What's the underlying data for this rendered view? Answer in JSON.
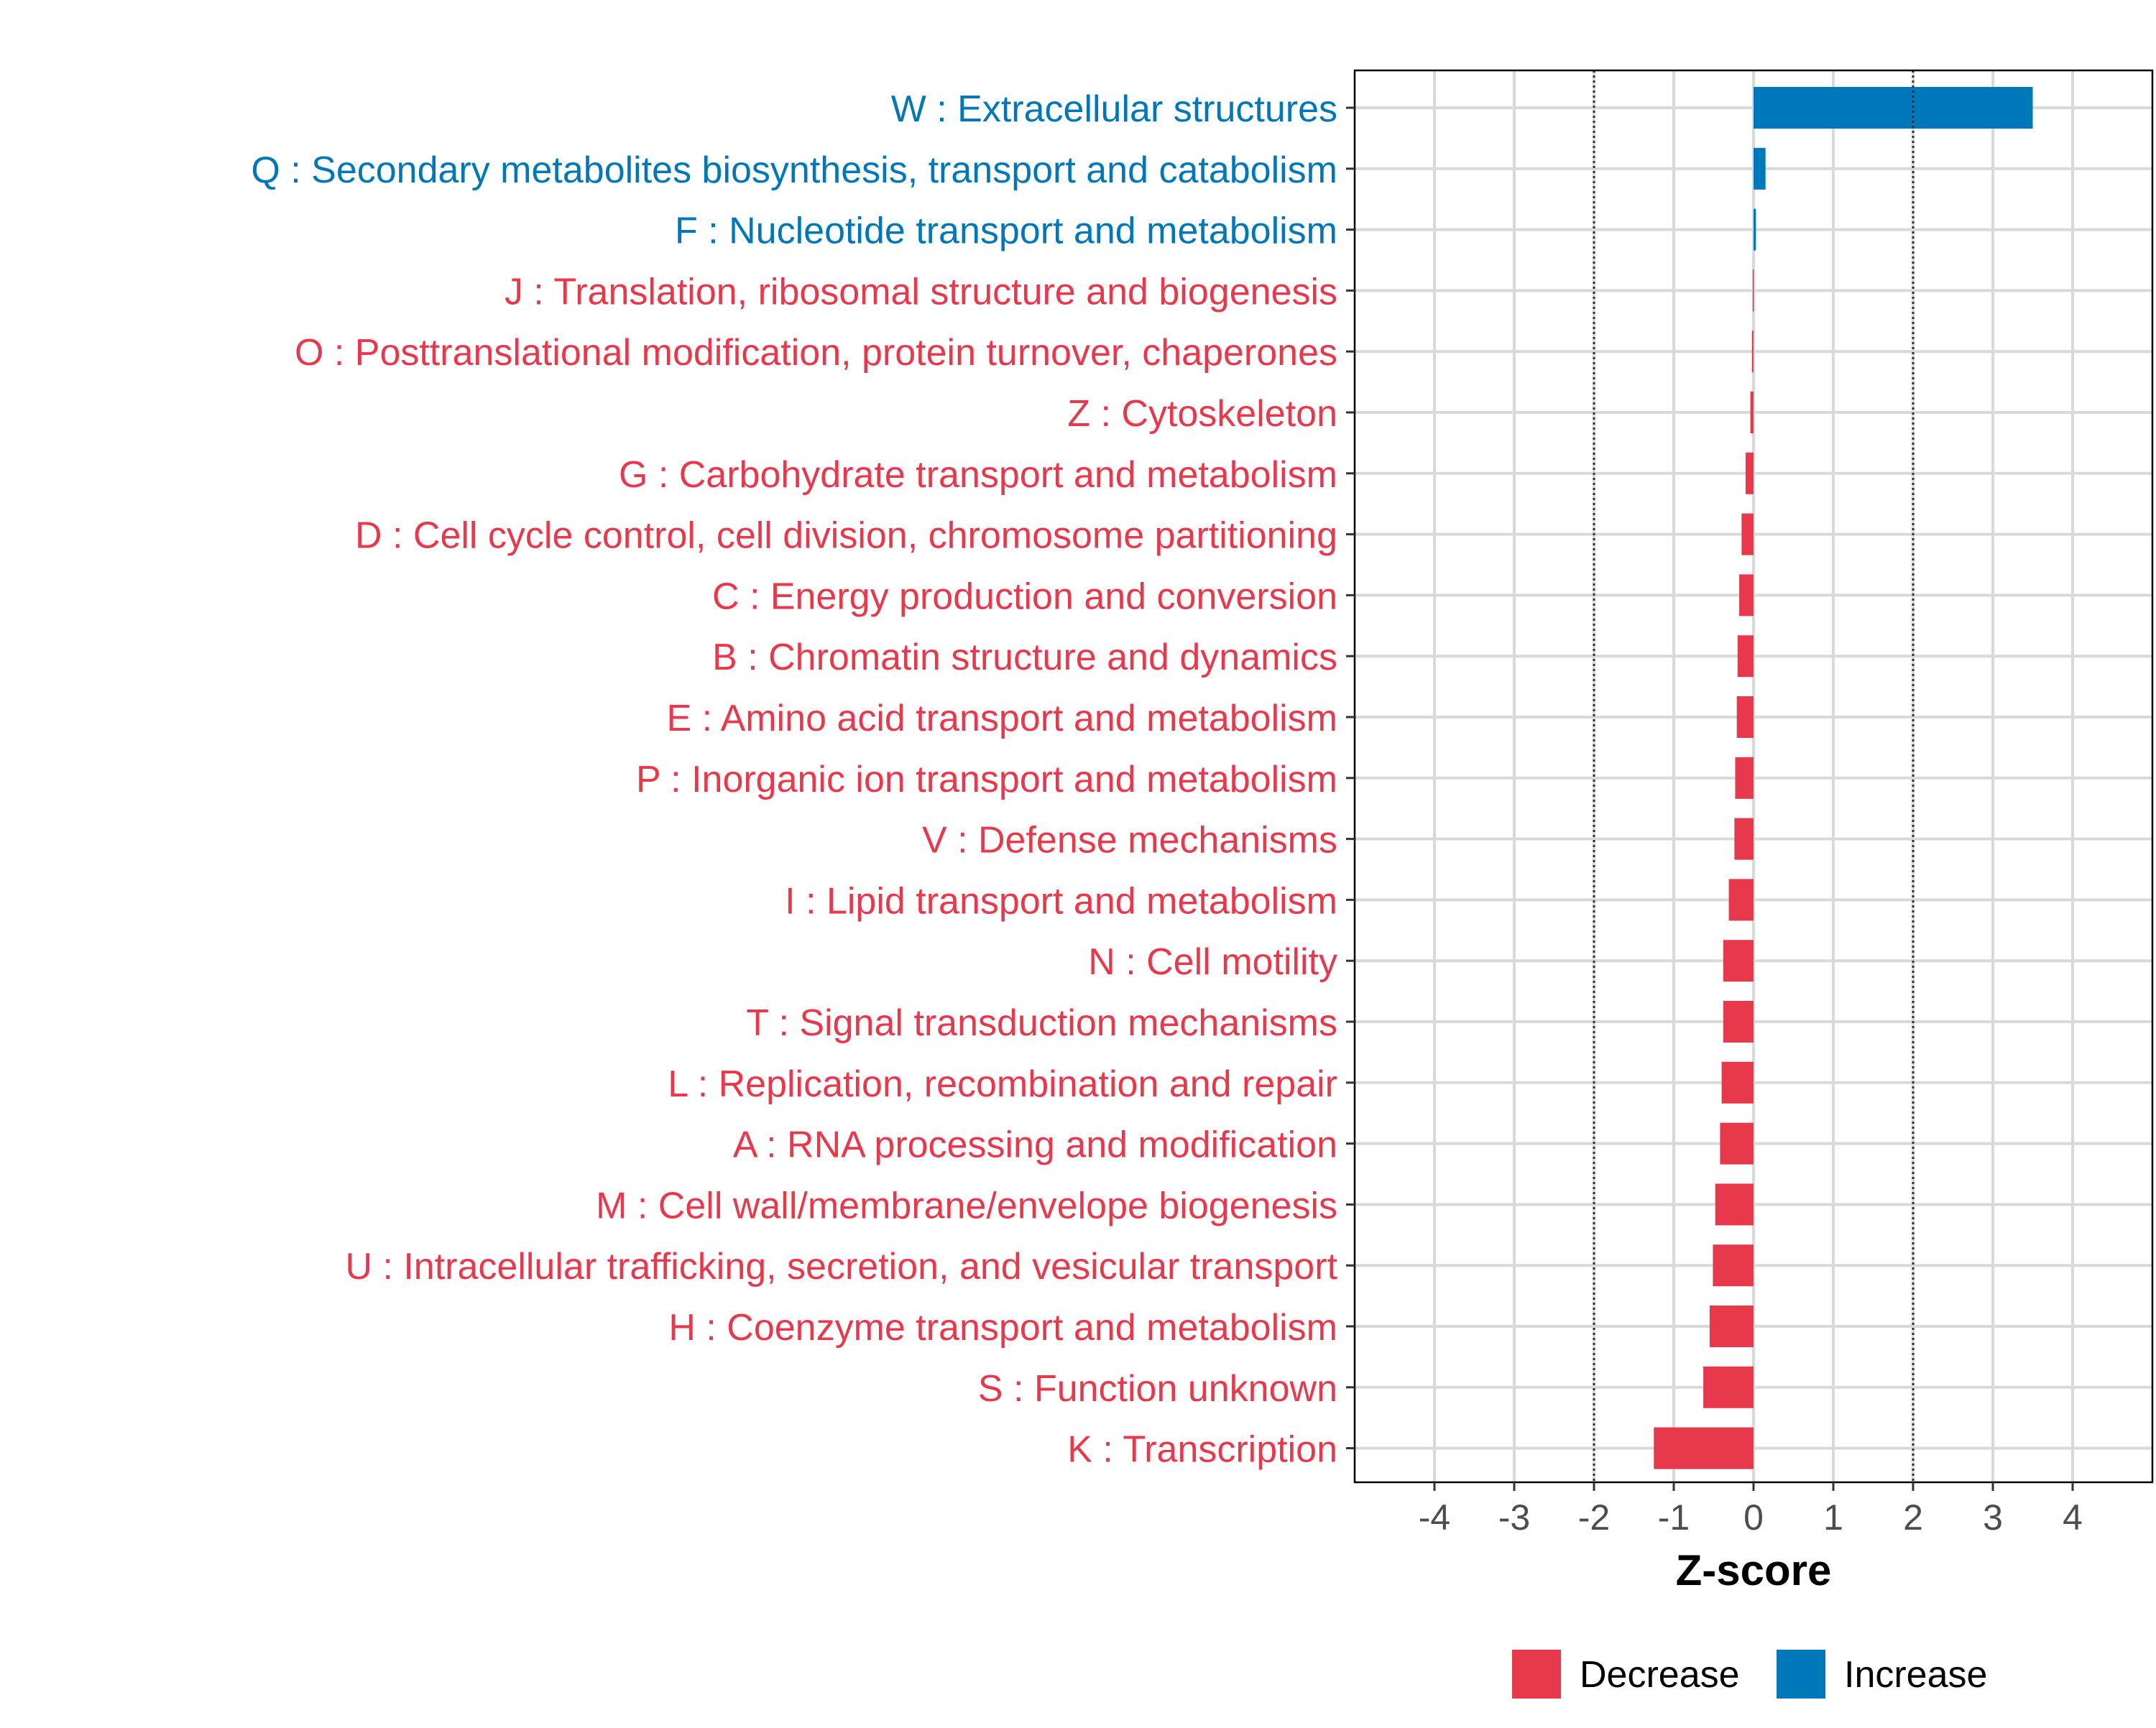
{
  "chart_data": {
    "type": "bar",
    "orientation": "horizontal",
    "xlabel": "Z-score",
    "ylabel": "",
    "title": "",
    "xlim": [
      -5,
      5
    ],
    "xticks": [
      -4,
      -3,
      -2,
      -1,
      0,
      1,
      2,
      3,
      4
    ],
    "xtick_labels": [
      "-4",
      "-3",
      "-2",
      "-1",
      "0",
      "1",
      "2",
      "3",
      "4"
    ],
    "reference_lines": [
      -2,
      2
    ],
    "grid": true,
    "legend_position": "bottom",
    "colors": {
      "Decrease": "#E8384B",
      "Increase": "#0077B8"
    },
    "legend": [
      {
        "label": "Decrease",
        "color": "#E8384B"
      },
      {
        "label": "Increase",
        "color": "#0077B8"
      }
    ],
    "categories": [
      "W : Extracellular structures",
      "Q : Secondary metabolites biosynthesis, transport and catabolism",
      "F : Nucleotide transport and metabolism",
      "J : Translation, ribosomal structure and biogenesis",
      "O : Posttranslational modification, protein turnover, chaperones",
      "Z : Cytoskeleton",
      "G : Carbohydrate transport and metabolism",
      "D : Cell cycle control, cell division, chromosome partitioning",
      "C : Energy production and conversion",
      "B : Chromatin structure and dynamics",
      "E : Amino acid transport and metabolism",
      "P : Inorganic ion transport and metabolism",
      "V : Defense mechanisms",
      "I : Lipid transport and metabolism",
      "N : Cell motility",
      "T : Signal transduction mechanisms",
      "L : Replication, recombination and repair",
      "A : RNA processing and modification",
      "M : Cell wall/membrane/envelope biogenesis",
      "U : Intracellular trafficking, secretion, and vesicular transport",
      "H : Coenzyme transport and metabolism",
      "S : Function unknown",
      "K : Transcription"
    ],
    "values": [
      3.5,
      0.15,
      0.03,
      -0.01,
      -0.02,
      -0.04,
      -0.1,
      -0.15,
      -0.18,
      -0.2,
      -0.21,
      -0.23,
      -0.24,
      -0.31,
      -0.38,
      -0.38,
      -0.4,
      -0.42,
      -0.48,
      -0.51,
      -0.55,
      -0.63,
      -1.25
    ],
    "groups": [
      "Increase",
      "Increase",
      "Increase",
      "Decrease",
      "Decrease",
      "Decrease",
      "Decrease",
      "Decrease",
      "Decrease",
      "Decrease",
      "Decrease",
      "Decrease",
      "Decrease",
      "Decrease",
      "Decrease",
      "Decrease",
      "Decrease",
      "Decrease",
      "Decrease",
      "Decrease",
      "Decrease",
      "Decrease",
      "Decrease"
    ]
  }
}
